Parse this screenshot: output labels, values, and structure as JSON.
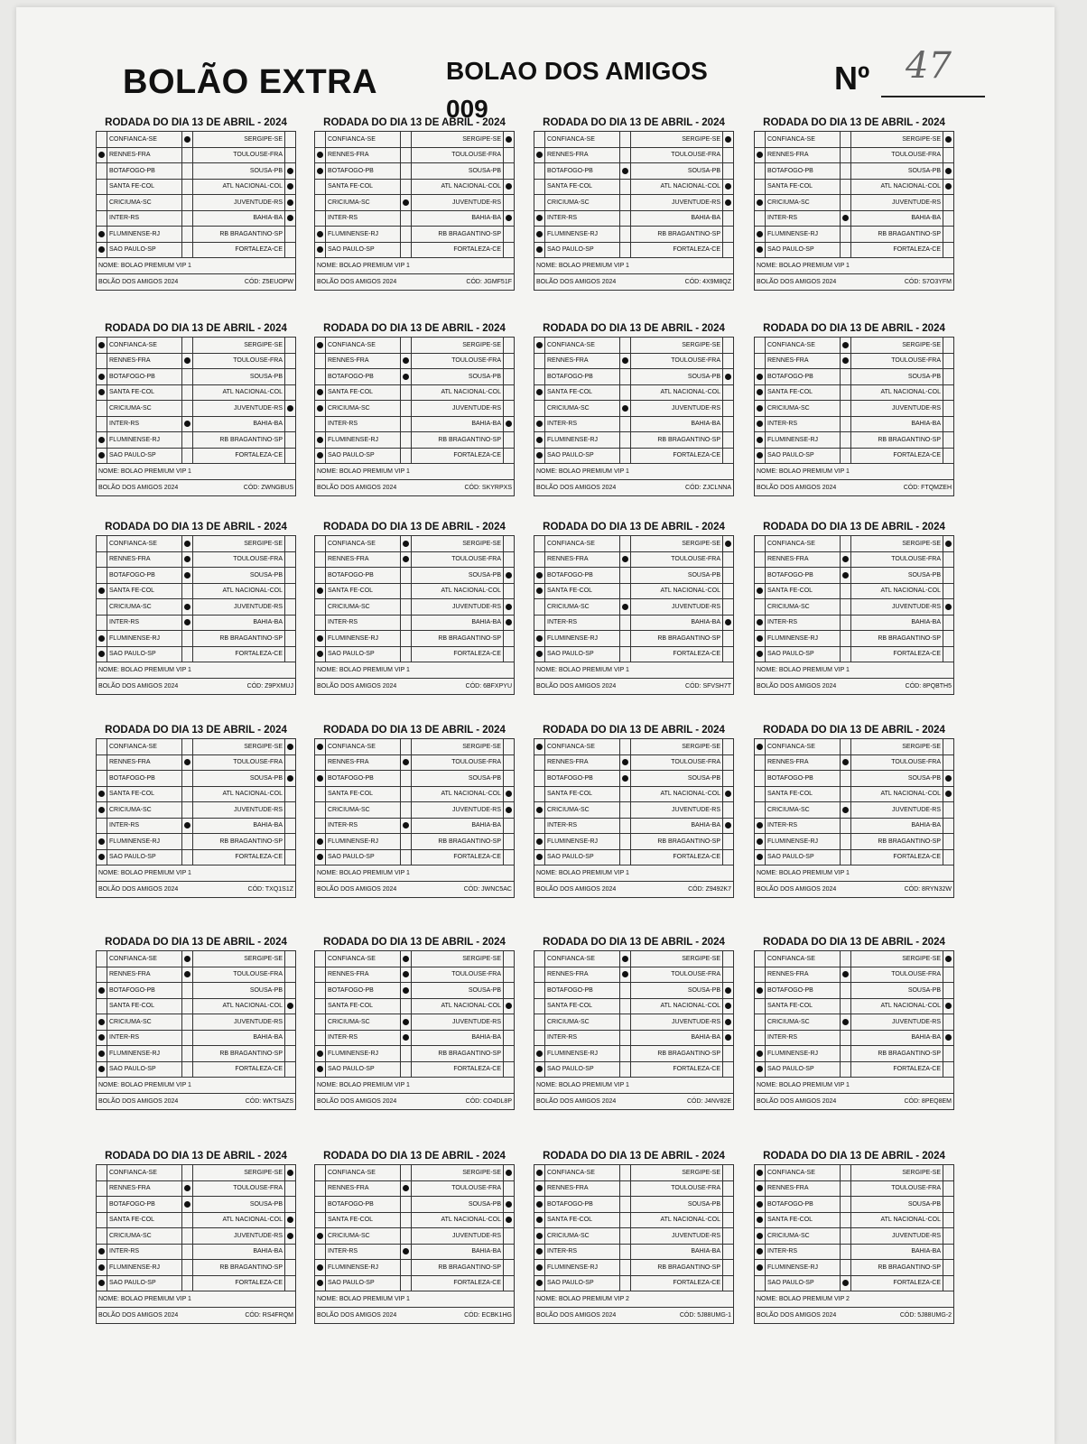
{
  "header": {
    "title": "BOLÃO EXTRA",
    "subtitle": "BOLAO DOS AMIGOS 009",
    "number_label": "Nº",
    "number_value": "47"
  },
  "card_title": "RODADA DO DIA 13 DE ABRIL - 2024",
  "footer_left": "BOLÃO DOS AMIGOS 2024",
  "code_label": "CÓD:",
  "matches": [
    {
      "home": "CONFIANCA-SE",
      "away": "SERGIPE-SE"
    },
    {
      "home": "RENNES-FRA",
      "away": "TOULOUSE-FRA"
    },
    {
      "home": "BOTAFOGO-PB",
      "away": "SOUSA-PB"
    },
    {
      "home": "SANTA FE-COL",
      "away": "ATL NACIONAL-COL"
    },
    {
      "home": "CRICIUMA-SC",
      "away": "JUVENTUDE-RS"
    },
    {
      "home": "INTER-RS",
      "away": "BAHIA-BA"
    },
    {
      "home": "FLUMINENSE-RJ",
      "away": "RB BRAGANTINO-SP"
    },
    {
      "home": "SAO PAULO-SP",
      "away": "FORTALEZA-CE"
    }
  ],
  "cards": [
    {
      "picks": [
        "D",
        "H",
        "A",
        "A",
        "A",
        "A",
        "H",
        "H"
      ],
      "name": "NOME: BOLAO PREMIUM VIP 1",
      "code": "Z5EUOPW"
    },
    {
      "picks": [
        "A",
        "H",
        "H",
        "A",
        "D",
        "A",
        "H",
        "H"
      ],
      "name": "NOME: BOLAO PREMIUM VIP 1",
      "code": "JGMF51F"
    },
    {
      "picks": [
        "A",
        "H",
        "D",
        "A",
        "A",
        "H",
        "H",
        "H"
      ],
      "name": "NOME: BOLAO PREMIUM VIP 1",
      "code": "4X9M8QZ"
    },
    {
      "picks": [
        "A",
        "H",
        "A",
        "A",
        "H",
        "D",
        "H",
        "H"
      ],
      "name": "NOME: BOLAO PREMIUM VIP 1",
      "code": "S7O3YFM"
    },
    {
      "picks": [
        "H",
        "D",
        "H",
        "H",
        "A",
        "D",
        "H",
        "H"
      ],
      "name": "NOME: BOLAO PREMIUM VIP 1",
      "code": "ZWNGBUS"
    },
    {
      "picks": [
        "H",
        "D",
        "D",
        "H",
        "H",
        "A",
        "H",
        "H"
      ],
      "name": "NOME: BOLAO PREMIUM VIP 1",
      "code": "SKYRPXS"
    },
    {
      "picks": [
        "H",
        "D",
        "A",
        "H",
        "D",
        "H",
        "H",
        "H"
      ],
      "name": "NOME: BOLAO PREMIUM VIP 1",
      "code": "ZJCLNNA"
    },
    {
      "picks": [
        "D",
        "D",
        "H",
        "H",
        "H",
        "H",
        "H",
        "H"
      ],
      "name": "NOME: BOLAO PREMIUM VIP 1",
      "code": "FTQMZEH"
    },
    {
      "picks": [
        "D",
        "D",
        "D",
        "H",
        "D",
        "D",
        "H",
        "H"
      ],
      "name": "NOME: BOLAO PREMIUM VIP 1",
      "code": "Z9PXMUJ"
    },
    {
      "picks": [
        "D",
        "D",
        "A",
        "H",
        "A",
        "A",
        "H",
        "H"
      ],
      "name": "NOME: BOLAO PREMIUM VIP 1",
      "code": "6BFXPYU"
    },
    {
      "picks": [
        "A",
        "D",
        "H",
        "H",
        "D",
        "A",
        "H",
        "H"
      ],
      "name": "NOME: BOLAO PREMIUM VIP 1",
      "code": "SFVSH7T"
    },
    {
      "picks": [
        "A",
        "D",
        "D",
        "H",
        "A",
        "H",
        "H",
        "H"
      ],
      "name": "NOME: BOLAO PREMIUM VIP 1",
      "code": "8PQBTH5"
    },
    {
      "picks": [
        "A",
        "D",
        "A",
        "H",
        "H",
        "D",
        "H",
        "H"
      ],
      "name": "NOME: BOLAO PREMIUM VIP 1",
      "code": "TXQ1S1Z"
    },
    {
      "picks": [
        "H",
        "D",
        "H",
        "A",
        "A",
        "D",
        "H",
        "H"
      ],
      "name": "NOME: BOLAO PREMIUM VIP 1",
      "code": "JWNC5AC"
    },
    {
      "picks": [
        "H",
        "D",
        "D",
        "A",
        "H",
        "A",
        "H",
        "H"
      ],
      "name": "NOME: BOLAO PREMIUM VIP 1",
      "code": "Z9492K7"
    },
    {
      "picks": [
        "H",
        "D",
        "A",
        "A",
        "D",
        "H",
        "H",
        "H"
      ],
      "name": "NOME: BOLAO PREMIUM VIP 1",
      "code": "8RYN32W"
    },
    {
      "picks": [
        "D",
        "D",
        "H",
        "A",
        "H",
        "H",
        "H",
        "H"
      ],
      "name": "NOME: BOLAO PREMIUM VIP 1",
      "code": "WKTSAZS"
    },
    {
      "picks": [
        "D",
        "D",
        "D",
        "A",
        "D",
        "D",
        "H",
        "H"
      ],
      "name": "NOME: BOLAO PREMIUM VIP 1",
      "code": "CO4DL8P"
    },
    {
      "picks": [
        "D",
        "D",
        "A",
        "A",
        "A",
        "A",
        "H",
        "H"
      ],
      "name": "NOME: BOLAO PREMIUM VIP 1",
      "code": "J4NV82E"
    },
    {
      "picks": [
        "A",
        "D",
        "H",
        "A",
        "D",
        "A",
        "H",
        "H"
      ],
      "name": "NOME: BOLAO PREMIUM VIP 1",
      "code": "8PEQ8EM"
    },
    {
      "picks": [
        "A",
        "D",
        "D",
        "A",
        "A",
        "H",
        "H",
        "H"
      ],
      "name": "NOME: BOLAO PREMIUM VIP 1",
      "code": "RS4FRQM"
    },
    {
      "picks": [
        "A",
        "D",
        "A",
        "A",
        "H",
        "D",
        "H",
        "H"
      ],
      "name": "NOME: BOLAO PREMIUM VIP 1",
      "code": "ECBK1HG"
    },
    {
      "picks": [
        "H",
        "H",
        "H",
        "H",
        "H",
        "H",
        "H",
        "H"
      ],
      "name": "NOME: BOLAO PREMIUM VIP 2",
      "code": "5J88UMG-1"
    },
    {
      "picks": [
        "H",
        "H",
        "H",
        "H",
        "H",
        "H",
        "H",
        "D"
      ],
      "name": "NOME: BOLAO PREMIUM VIP 2",
      "code": "5J88UMG-2"
    }
  ]
}
